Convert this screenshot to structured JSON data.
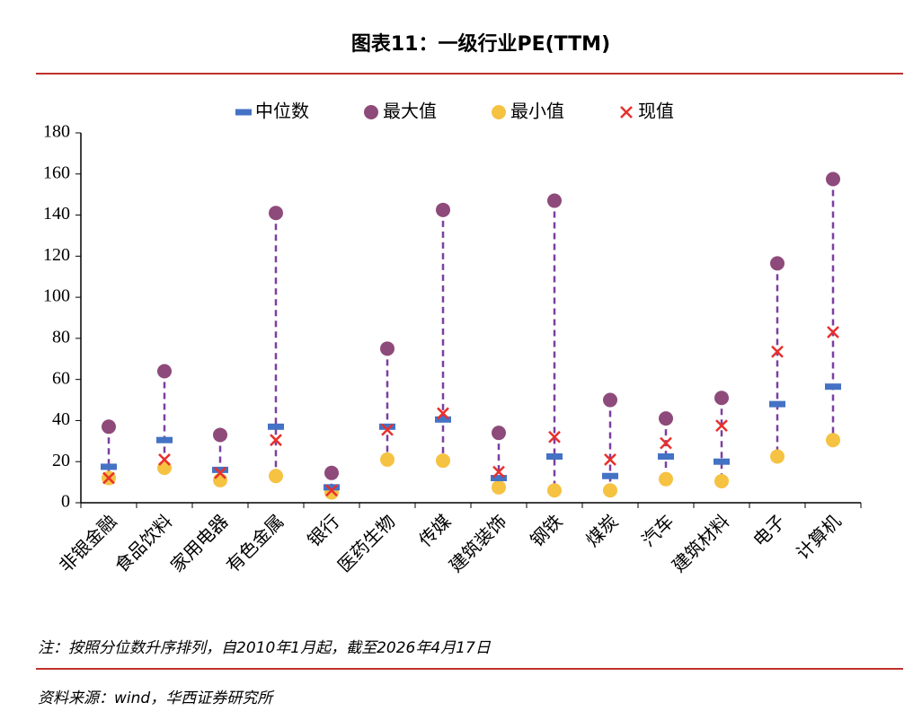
{
  "chart_data": {
    "type": "range-dot",
    "title": "图表11：一级行业PE(TTM)",
    "note": "注：按照分位数升序排列，自2010年1月起，截至2026年4月17日",
    "source": "资料来源：wind，华西证券研究所",
    "categories": [
      "非银金融",
      "食品饮料",
      "家用电器",
      "有色金属",
      "银行",
      "医药生物",
      "传媒",
      "建筑装饰",
      "钢铁",
      "煤炭",
      "汽车",
      "建筑材料",
      "电子",
      "计算机"
    ],
    "series": [
      {
        "name": "中位数",
        "color": "#4472c4",
        "marker": "dash",
        "values": [
          17.5,
          30.5,
          16,
          37,
          7.5,
          37,
          40.5,
          12,
          22.5,
          13,
          22.5,
          20,
          48,
          56.5
        ]
      },
      {
        "name": "最大值",
        "color": "#8e4a7a",
        "marker": "circle",
        "values": [
          37,
          64,
          33,
          141,
          14.5,
          75,
          142.5,
          34,
          147,
          50,
          41,
          51,
          116.5,
          157.5
        ]
      },
      {
        "name": "最小值",
        "color": "#f5c242",
        "marker": "circle",
        "values": [
          12,
          17,
          11,
          13,
          5,
          21,
          20.5,
          7.5,
          6,
          6,
          11.5,
          10.5,
          22.5,
          30.5
        ]
      },
      {
        "name": "现值",
        "color": "#e8302c",
        "marker": "cross",
        "values": [
          12,
          21,
          14.5,
          30.5,
          6,
          35.5,
          43.5,
          15,
          32,
          21,
          29,
          37.5,
          73.5,
          83
        ]
      }
    ],
    "connector_color": "#7b3fa0",
    "ylim": [
      0,
      180
    ],
    "yticks": [
      0,
      20,
      40,
      60,
      80,
      100,
      120,
      140,
      160,
      180
    ]
  }
}
